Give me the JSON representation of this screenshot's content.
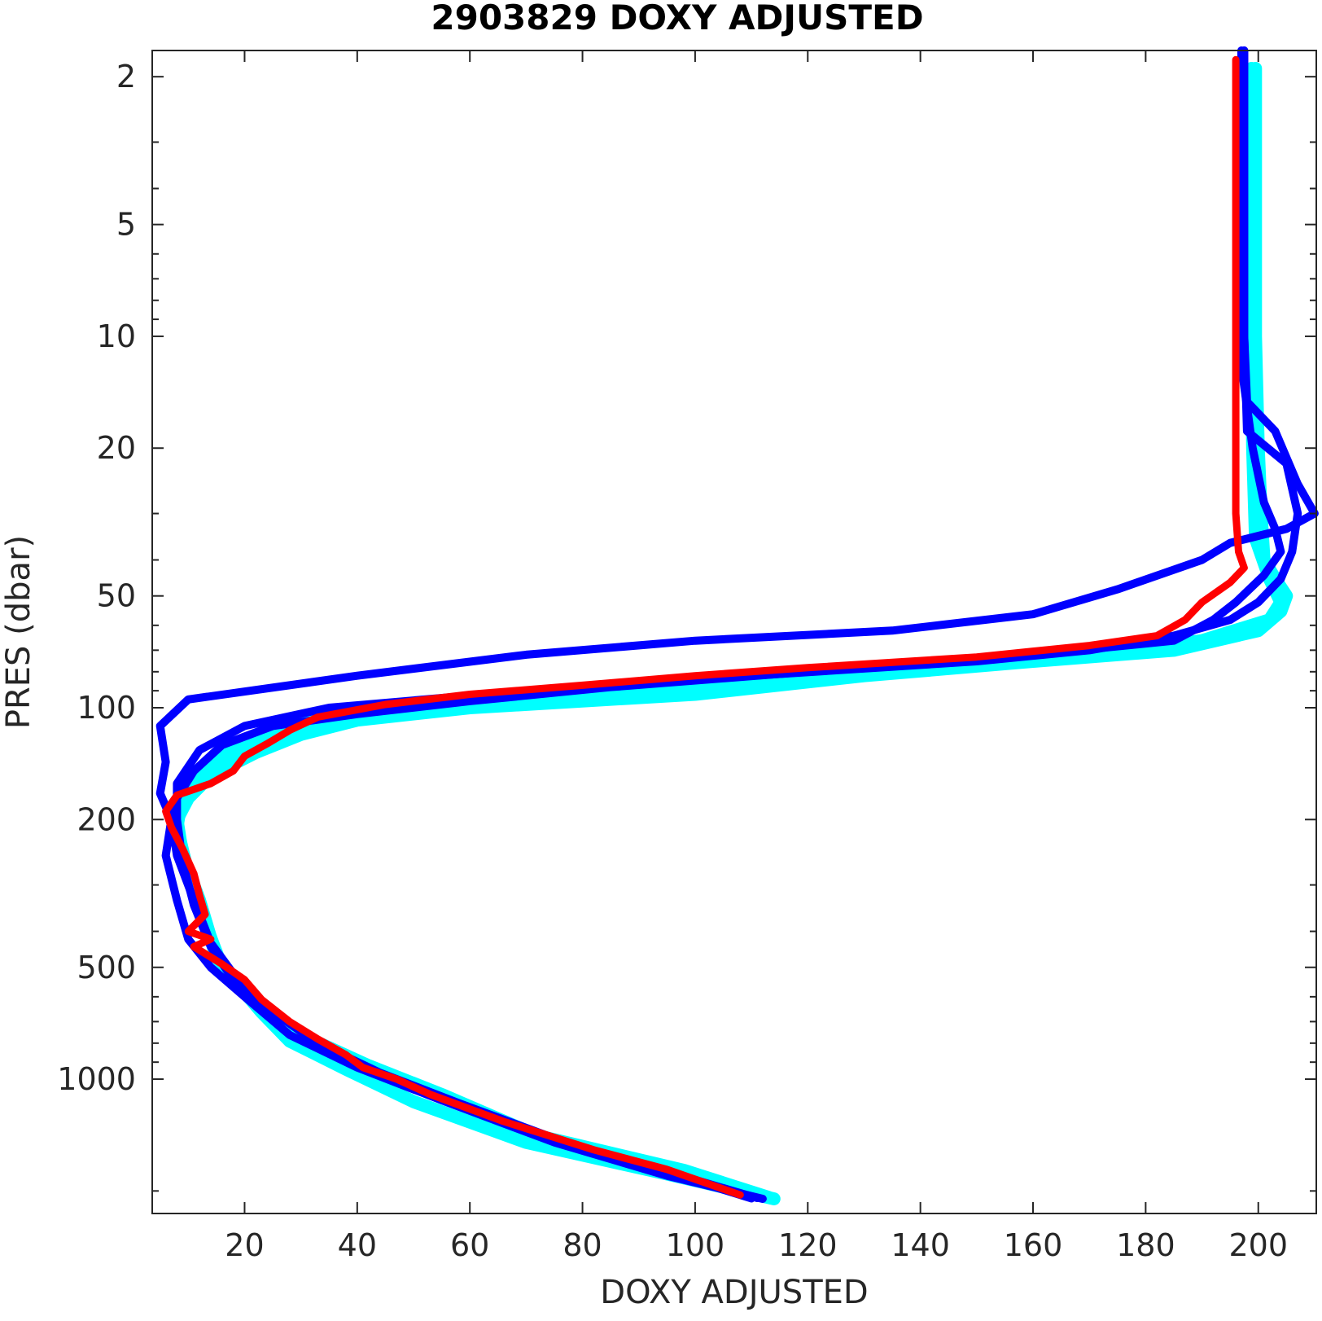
{
  "chart_data": {
    "type": "line",
    "title": "2903829  DOXY ADJUSTED",
    "xlabel": "DOXY ADJUSTED",
    "ylabel": "PRES (dbar)",
    "xlim": [
      3.6,
      210.3
    ],
    "ylim": [
      1.7,
      2300
    ],
    "y_scale": "log",
    "y_reversed": true,
    "x_ticks": [
      20,
      40,
      60,
      80,
      100,
      120,
      140,
      160,
      180,
      200
    ],
    "y_ticks": [
      2,
      5,
      10,
      20,
      50,
      100,
      200,
      500,
      1000
    ],
    "grid": false,
    "legend": "none",
    "series": [
      {
        "color": "#00ffff",
        "points": [
          [
            199.5,
            1.9
          ],
          [
            199.5,
            5
          ],
          [
            199.5,
            10
          ],
          [
            200,
            20
          ],
          [
            200.5,
            30
          ],
          [
            201,
            40
          ],
          [
            203,
            45
          ],
          [
            205,
            50
          ],
          [
            204,
            55
          ],
          [
            200,
            62
          ],
          [
            185,
            70
          ],
          [
            160,
            75
          ],
          [
            130,
            82
          ],
          [
            100,
            92
          ],
          [
            60,
            100
          ],
          [
            40,
            108
          ],
          [
            30,
            118
          ],
          [
            22,
            132
          ],
          [
            14,
            152
          ],
          [
            10,
            175
          ],
          [
            8,
            200
          ],
          [
            9,
            250
          ],
          [
            12,
            330
          ],
          [
            15,
            470
          ],
          [
            19,
            560
          ],
          [
            23,
            660
          ],
          [
            28,
            790
          ],
          [
            38,
            940
          ],
          [
            50,
            1150
          ],
          [
            70,
            1480
          ],
          [
            95,
            1800
          ],
          [
            114,
            2100
          ]
        ]
      },
      {
        "color": "#00ffff",
        "points": [
          [
            198.8,
            1.9
          ],
          [
            198.8,
            10
          ],
          [
            199,
            20
          ],
          [
            199.5,
            35
          ],
          [
            202,
            45
          ],
          [
            204,
            52
          ],
          [
            202,
            58
          ],
          [
            190,
            66
          ],
          [
            170,
            72
          ],
          [
            140,
            78
          ],
          [
            110,
            86
          ],
          [
            80,
            94
          ],
          [
            50,
            102
          ],
          [
            30,
            110
          ],
          [
            20,
            125
          ],
          [
            13,
            145
          ],
          [
            9,
            170
          ],
          [
            8,
            210
          ],
          [
            10,
            280
          ],
          [
            13,
            380
          ],
          [
            16,
            500
          ],
          [
            22,
            620
          ],
          [
            30,
            760
          ],
          [
            42,
            920
          ],
          [
            55,
            1100
          ],
          [
            72,
            1420
          ],
          [
            98,
            1760
          ],
          [
            113,
            2080
          ]
        ]
      },
      {
        "color": "#0000ff",
        "points": [
          [
            197.5,
            1.7
          ],
          [
            197.5,
            5
          ],
          [
            197.5,
            10
          ],
          [
            198,
            15
          ],
          [
            203,
            18
          ],
          [
            207,
            25
          ],
          [
            210,
            30
          ],
          [
            205,
            33
          ],
          [
            195,
            36
          ],
          [
            190,
            40
          ],
          [
            175,
            48
          ],
          [
            160,
            56
          ],
          [
            135,
            62
          ],
          [
            100,
            66
          ],
          [
            70,
            72
          ],
          [
            40,
            82
          ],
          [
            10,
            95
          ],
          [
            5,
            112
          ],
          [
            6,
            140
          ],
          [
            5,
            170
          ],
          [
            7,
            200
          ],
          [
            6,
            250
          ],
          [
            8,
            330
          ],
          [
            10,
            420
          ],
          [
            14,
            500
          ],
          [
            20,
            600
          ],
          [
            28,
            760
          ],
          [
            40,
            930
          ],
          [
            55,
            1140
          ],
          [
            75,
            1480
          ],
          [
            95,
            1820
          ],
          [
            112,
            2100
          ]
        ]
      },
      {
        "color": "#0000ff",
        "points": [
          [
            197.5,
            1.7
          ],
          [
            197.5,
            10
          ],
          [
            198,
            18
          ],
          [
            205,
            22
          ],
          [
            207,
            30
          ],
          [
            206,
            38
          ],
          [
            204,
            45
          ],
          [
            200,
            52
          ],
          [
            195,
            58
          ],
          [
            185,
            64
          ],
          [
            170,
            70
          ],
          [
            150,
            75
          ],
          [
            110,
            82
          ],
          [
            70,
            90
          ],
          [
            35,
            100
          ],
          [
            20,
            112
          ],
          [
            12,
            130
          ],
          [
            8,
            160
          ],
          [
            8,
            200
          ],
          [
            9,
            260
          ],
          [
            11,
            340
          ],
          [
            14,
            440
          ],
          [
            18,
            540
          ],
          [
            25,
            660
          ],
          [
            33,
            800
          ],
          [
            44,
            960
          ],
          [
            58,
            1160
          ],
          [
            78,
            1500
          ],
          [
            98,
            1830
          ],
          [
            111,
            2090
          ]
        ]
      },
      {
        "color": "#0000ff",
        "points": [
          [
            197,
            1.7
          ],
          [
            197,
            12
          ],
          [
            199,
            20
          ],
          [
            201,
            28
          ],
          [
            203,
            33
          ],
          [
            204,
            38
          ],
          [
            201,
            44
          ],
          [
            196,
            52
          ],
          [
            192,
            58
          ],
          [
            185,
            66
          ],
          [
            160,
            72
          ],
          [
            120,
            80
          ],
          [
            85,
            88
          ],
          [
            60,
            96
          ],
          [
            40,
            104
          ],
          [
            25,
            112
          ],
          [
            16,
            126
          ],
          [
            11,
            148
          ],
          [
            8,
            175
          ],
          [
            7,
            200
          ],
          [
            8,
            250
          ],
          [
            11,
            330
          ],
          [
            14,
            430
          ],
          [
            18,
            520
          ],
          [
            24,
            640
          ],
          [
            32,
            780
          ],
          [
            42,
            940
          ],
          [
            56,
            1140
          ],
          [
            76,
            1490
          ],
          [
            97,
            1820
          ],
          [
            110,
            2095
          ]
        ]
      },
      {
        "color": "#ff0000",
        "points": [
          [
            196,
            1.8
          ],
          [
            196,
            5
          ],
          [
            196,
            10
          ],
          [
            196,
            20
          ],
          [
            196,
            30
          ],
          [
            196.5,
            38
          ],
          [
            197.5,
            42
          ],
          [
            195,
            46
          ],
          [
            190,
            52
          ],
          [
            187,
            58
          ],
          [
            182,
            64
          ],
          [
            170,
            68
          ],
          [
            150,
            73
          ],
          [
            120,
            78
          ],
          [
            100,
            82
          ],
          [
            80,
            87
          ],
          [
            60,
            92
          ],
          [
            45,
            98
          ],
          [
            33,
            106
          ],
          [
            28,
            115
          ],
          [
            24,
            125
          ],
          [
            20,
            135
          ],
          [
            18,
            148
          ],
          [
            14,
            160
          ],
          [
            8,
            172
          ],
          [
            6,
            190
          ],
          [
            7,
            210
          ],
          [
            9,
            240
          ],
          [
            11,
            280
          ],
          [
            12,
            320
          ],
          [
            13,
            360
          ],
          [
            10,
            400
          ],
          [
            14,
            420
          ],
          [
            11,
            440
          ],
          [
            16,
            490
          ],
          [
            20,
            540
          ],
          [
            23,
            610
          ],
          [
            28,
            700
          ],
          [
            33,
            780
          ],
          [
            38,
            860
          ],
          [
            41,
            930
          ],
          [
            47,
            1000
          ],
          [
            53,
            1100
          ],
          [
            66,
            1300
          ],
          [
            82,
            1550
          ],
          [
            95,
            1750
          ],
          [
            108,
            2050
          ]
        ]
      }
    ]
  }
}
